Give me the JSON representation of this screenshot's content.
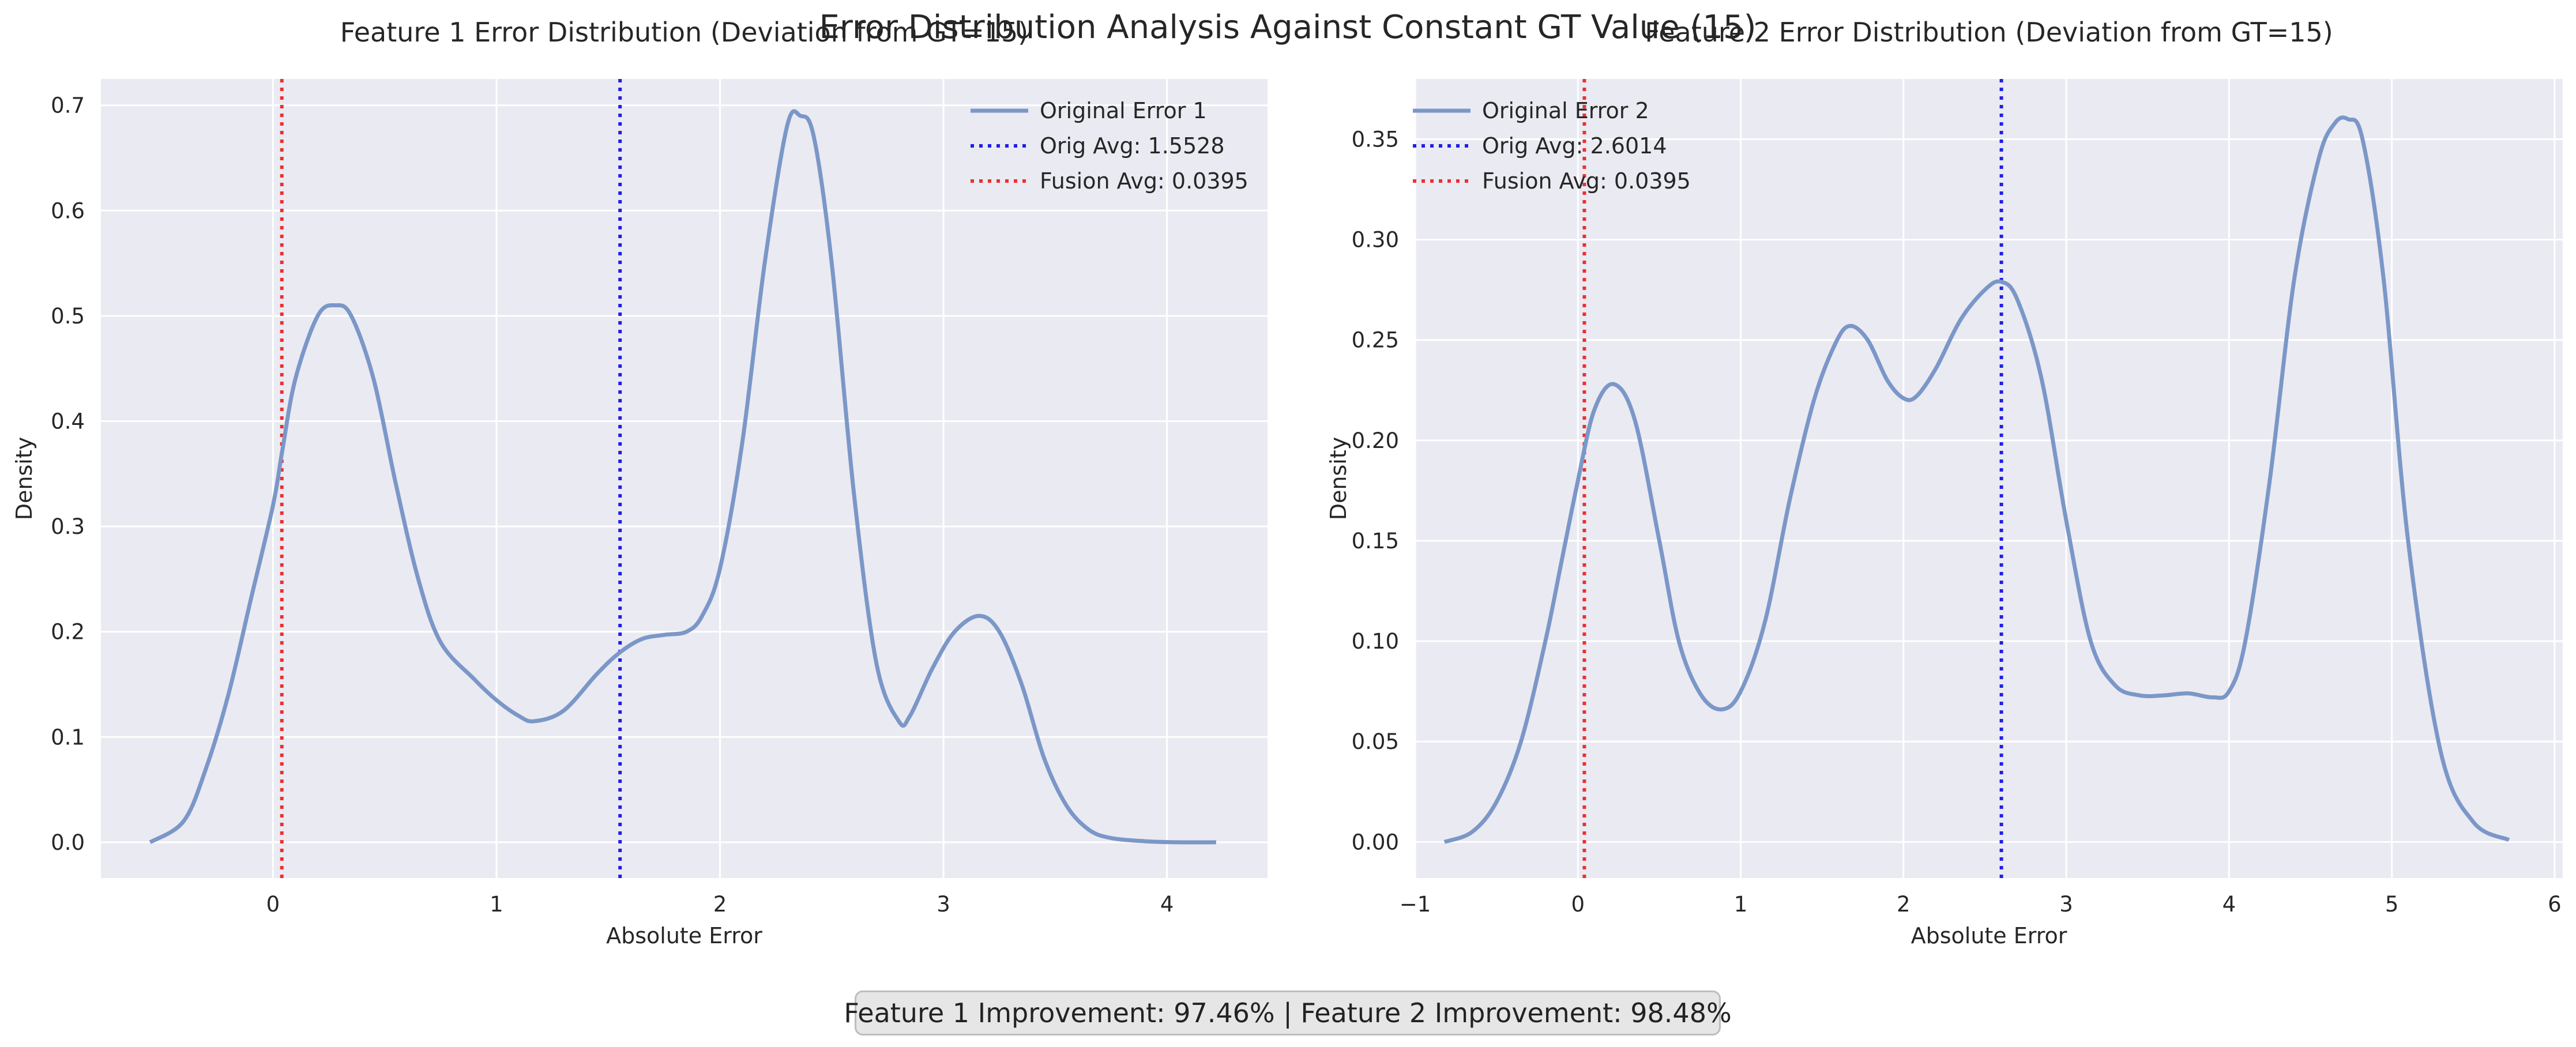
{
  "suptitle": "Error Distribution Analysis Against Constant GT Value (15)",
  "summary": "Feature 1 Improvement: 97.46% | Feature 2 Improvement: 98.48%",
  "colors": {
    "kde": "#7b97c8",
    "orig_avg": "#1f1fe8",
    "fusion_avg": "#ef2f2f",
    "plot_bg": "#eaeaf2",
    "grid": "#ffffff"
  },
  "chart_data": [
    {
      "type": "line",
      "title": "Feature 1 Error Distribution (Deviation from GT=15)",
      "xlabel": "Absolute Error",
      "ylabel": "Density",
      "xlim": [
        -0.77,
        4.45
      ],
      "ylim": [
        -0.034,
        0.725
      ],
      "xticks": [
        0,
        1,
        2,
        3,
        4
      ],
      "xtick_labels": [
        "0",
        "1",
        "2",
        "3",
        "4"
      ],
      "yticks": [
        0.0,
        0.1,
        0.2,
        0.3,
        0.4,
        0.5,
        0.6,
        0.7
      ],
      "ytick_labels": [
        "0.0",
        "0.1",
        "0.2",
        "0.3",
        "0.4",
        "0.5",
        "0.6",
        "0.7"
      ],
      "grid": true,
      "legend_position": "top-right",
      "series": [
        {
          "name": "Original Error 1",
          "x": [
            -0.55,
            -0.4,
            -0.3,
            -0.2,
            -0.1,
            0.0,
            0.04,
            0.1,
            0.2,
            0.28,
            0.35,
            0.45,
            0.55,
            0.65,
            0.75,
            0.9,
            1.0,
            1.1,
            1.17,
            1.3,
            1.45,
            1.55,
            1.65,
            1.75,
            1.85,
            1.92,
            2.0,
            2.1,
            2.2,
            2.3,
            2.36,
            2.42,
            2.5,
            2.6,
            2.7,
            2.8,
            2.85,
            2.95,
            3.05,
            3.16,
            3.25,
            3.35,
            3.45,
            3.55,
            3.65,
            3.75,
            3.9,
            4.05,
            4.22
          ],
          "y": [
            0.0,
            0.02,
            0.07,
            0.14,
            0.23,
            0.32,
            0.37,
            0.44,
            0.5,
            0.51,
            0.5,
            0.44,
            0.34,
            0.25,
            0.19,
            0.155,
            0.135,
            0.12,
            0.115,
            0.125,
            0.16,
            0.18,
            0.193,
            0.197,
            0.2,
            0.215,
            0.26,
            0.38,
            0.55,
            0.68,
            0.69,
            0.67,
            0.55,
            0.33,
            0.17,
            0.115,
            0.12,
            0.165,
            0.2,
            0.215,
            0.2,
            0.15,
            0.08,
            0.035,
            0.012,
            0.004,
            0.001,
            0.0,
            0.0
          ]
        }
      ],
      "vlines": [
        {
          "name": "Orig Avg: 1.5528",
          "x": 1.5528,
          "style": "dotted",
          "color": "blue"
        },
        {
          "name": "Fusion Avg: 0.0395",
          "x": 0.0395,
          "style": "dotted",
          "color": "red"
        }
      ]
    },
    {
      "type": "line",
      "title": "Feature 2 Error Distribution (Deviation from GT=15)",
      "xlabel": "Absolute Error",
      "ylabel": "Density",
      "xlim": [
        -1.0,
        6.05
      ],
      "ylim": [
        -0.018,
        0.38
      ],
      "xticks": [
        -1,
        0,
        1,
        2,
        3,
        4,
        5,
        6
      ],
      "xtick_labels": [
        "−1",
        "0",
        "1",
        "2",
        "3",
        "4",
        "5",
        "6"
      ],
      "yticks": [
        0.0,
        0.05,
        0.1,
        0.15,
        0.2,
        0.25,
        0.3,
        0.35
      ],
      "ytick_labels": [
        "0.00",
        "0.05",
        "0.10",
        "0.15",
        "0.20",
        "0.25",
        "0.30",
        "0.35"
      ],
      "grid": true,
      "legend_position": "top-left",
      "series": [
        {
          "name": "Original Error 2",
          "x": [
            -0.82,
            -0.65,
            -0.5,
            -0.35,
            -0.2,
            -0.1,
            0.0,
            0.1,
            0.22,
            0.35,
            0.5,
            0.62,
            0.75,
            0.88,
            1.0,
            1.15,
            1.3,
            1.45,
            1.58,
            1.67,
            1.78,
            1.9,
            2.0,
            2.08,
            2.2,
            2.35,
            2.5,
            2.6,
            2.7,
            2.85,
            3.0,
            3.15,
            3.3,
            3.45,
            3.6,
            3.75,
            3.9,
            4.0,
            4.1,
            4.25,
            4.4,
            4.55,
            4.65,
            4.73,
            4.82,
            4.95,
            5.1,
            5.3,
            5.5,
            5.72
          ],
          "y": [
            0.0,
            0.005,
            0.02,
            0.05,
            0.1,
            0.14,
            0.18,
            0.215,
            0.228,
            0.21,
            0.15,
            0.1,
            0.074,
            0.066,
            0.075,
            0.11,
            0.17,
            0.22,
            0.248,
            0.257,
            0.25,
            0.23,
            0.221,
            0.222,
            0.236,
            0.26,
            0.275,
            0.279,
            0.27,
            0.23,
            0.16,
            0.1,
            0.078,
            0.073,
            0.073,
            0.074,
            0.072,
            0.075,
            0.1,
            0.18,
            0.28,
            0.34,
            0.358,
            0.36,
            0.35,
            0.28,
            0.15,
            0.045,
            0.01,
            0.001
          ]
        }
      ],
      "vlines": [
        {
          "name": "Orig Avg: 2.6014",
          "x": 2.6014,
          "style": "dotted",
          "color": "blue"
        },
        {
          "name": "Fusion Avg: 0.0395",
          "x": 0.0395,
          "style": "dotted",
          "color": "red"
        }
      ]
    }
  ]
}
